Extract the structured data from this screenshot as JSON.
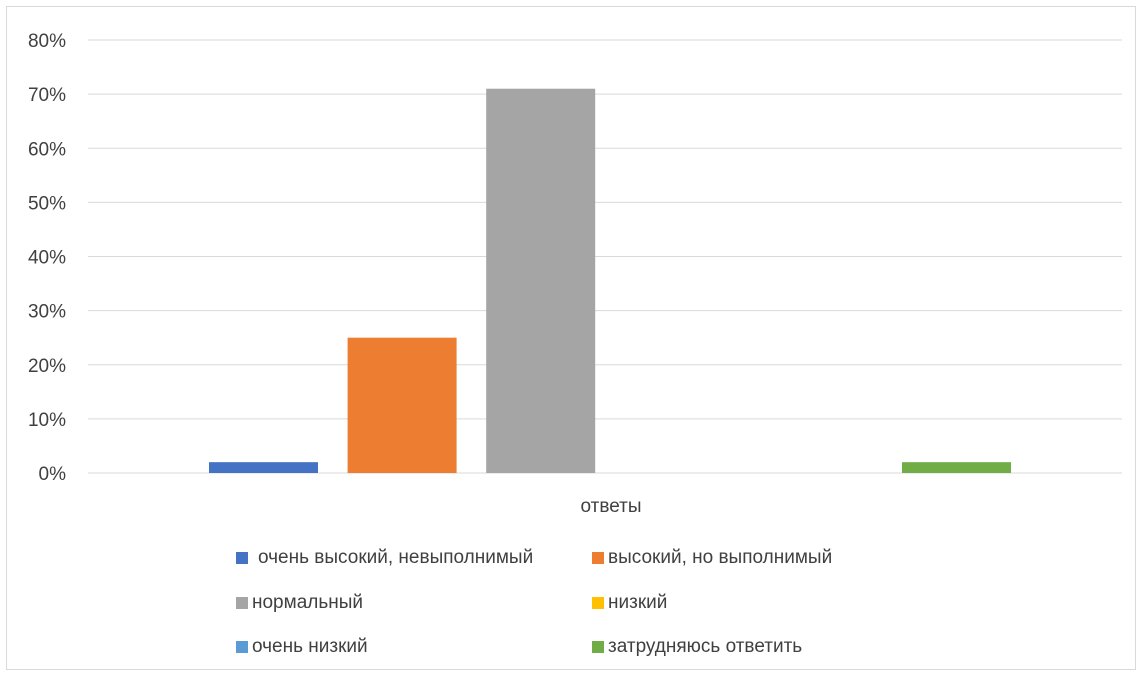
{
  "chart_data": {
    "type": "bar",
    "categories": [
      "ответы"
    ],
    "xlabel": "",
    "ylabel": "",
    "ylim": [
      0,
      80
    ],
    "y_ticks": [
      "0%",
      "10%",
      "20%",
      "30%",
      "40%",
      "50%",
      "60%",
      "70%",
      "80%"
    ],
    "grid": true,
    "legend_position": "bottom",
    "series": [
      {
        "name": "очень высокий, невыполнимый",
        "values": [
          2
        ],
        "color": "#4472c4"
      },
      {
        "name": "высокий, но выполнимый",
        "values": [
          25
        ],
        "color": "#ed7d31"
      },
      {
        "name": "нормальный",
        "values": [
          71
        ],
        "color": "#a5a5a5"
      },
      {
        "name": "низкий",
        "values": [
          0
        ],
        "color": "#ffc000"
      },
      {
        "name": "очень низкий",
        "values": [
          0
        ],
        "color": "#5b9bd5"
      },
      {
        "name": "затрудняюсь ответить",
        "values": [
          2
        ],
        "color": "#70ad47"
      }
    ]
  }
}
